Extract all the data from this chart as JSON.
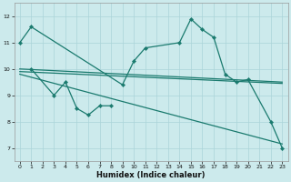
{
  "xlabel": "Humidex (Indice chaleur)",
  "bg_color": "#cceaec",
  "grid_color": "#aad4d8",
  "line_color": "#1a7a6e",
  "xlim": [
    -0.5,
    23.5
  ],
  "ylim": [
    6.5,
    12.5
  ],
  "yticks": [
    7,
    8,
    9,
    10,
    11,
    12
  ],
  "xticks": [
    0,
    1,
    2,
    3,
    4,
    5,
    6,
    7,
    8,
    9,
    10,
    11,
    12,
    13,
    14,
    15,
    16,
    17,
    18,
    19,
    20,
    21,
    22,
    23
  ],
  "curve1_x": [
    0,
    1,
    9,
    10,
    11,
    14,
    15,
    16,
    17,
    18,
    19,
    20,
    22,
    23
  ],
  "curve1_y": [
    11.0,
    11.6,
    9.4,
    10.3,
    10.8,
    11.0,
    11.9,
    11.5,
    11.2,
    9.8,
    9.5,
    9.6,
    8.0,
    7.0
  ],
  "curve2_x": [
    1,
    3,
    4,
    5,
    6,
    7,
    8
  ],
  "curve2_y": [
    10.0,
    9.0,
    9.5,
    8.5,
    8.25,
    8.6,
    8.6
  ],
  "line1_x": [
    0,
    23
  ],
  "line1_y": [
    10.0,
    9.5
  ],
  "line2_x": [
    0,
    23
  ],
  "line2_y": [
    9.8,
    7.15
  ],
  "line3_x": [
    0,
    23
  ],
  "line3_y": [
    9.9,
    9.45
  ]
}
